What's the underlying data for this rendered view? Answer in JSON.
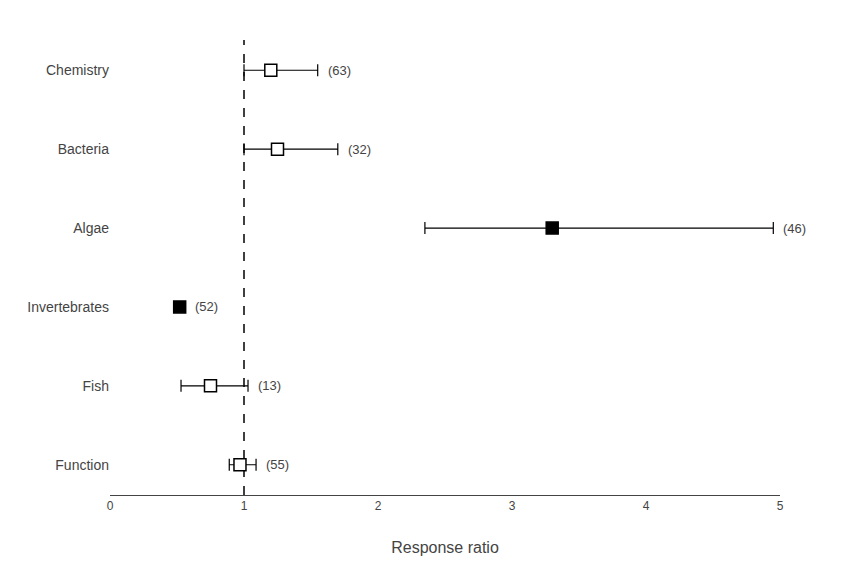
{
  "chart_data": {
    "type": "scatter",
    "categories": [
      "Chemistry",
      "Bacteria",
      "Algae",
      "Invertebrates",
      "Fish",
      "Function"
    ],
    "values": [
      1.2,
      1.25,
      3.3,
      0.52,
      0.75,
      0.97
    ],
    "error_low": [
      0.2,
      0.25,
      0.95,
      0.04,
      0.22,
      0.08
    ],
    "error_high": [
      0.35,
      0.45,
      1.65,
      0.04,
      0.28,
      0.12
    ],
    "colors": [
      "#ffffff",
      "#ffffff",
      "#000000",
      "#000000",
      "#ffffff",
      "#ffffff"
    ],
    "marker": "square",
    "annotations": [
      "(63)",
      "(32)",
      "(46)",
      "(52)",
      "(13)",
      "(55)"
    ],
    "xlabel": "Response ratio",
    "xlim": [
      0,
      5
    ],
    "xticks": [
      0,
      1,
      2,
      3,
      4,
      5
    ],
    "reference_x": 1.0,
    "grid": false
  }
}
